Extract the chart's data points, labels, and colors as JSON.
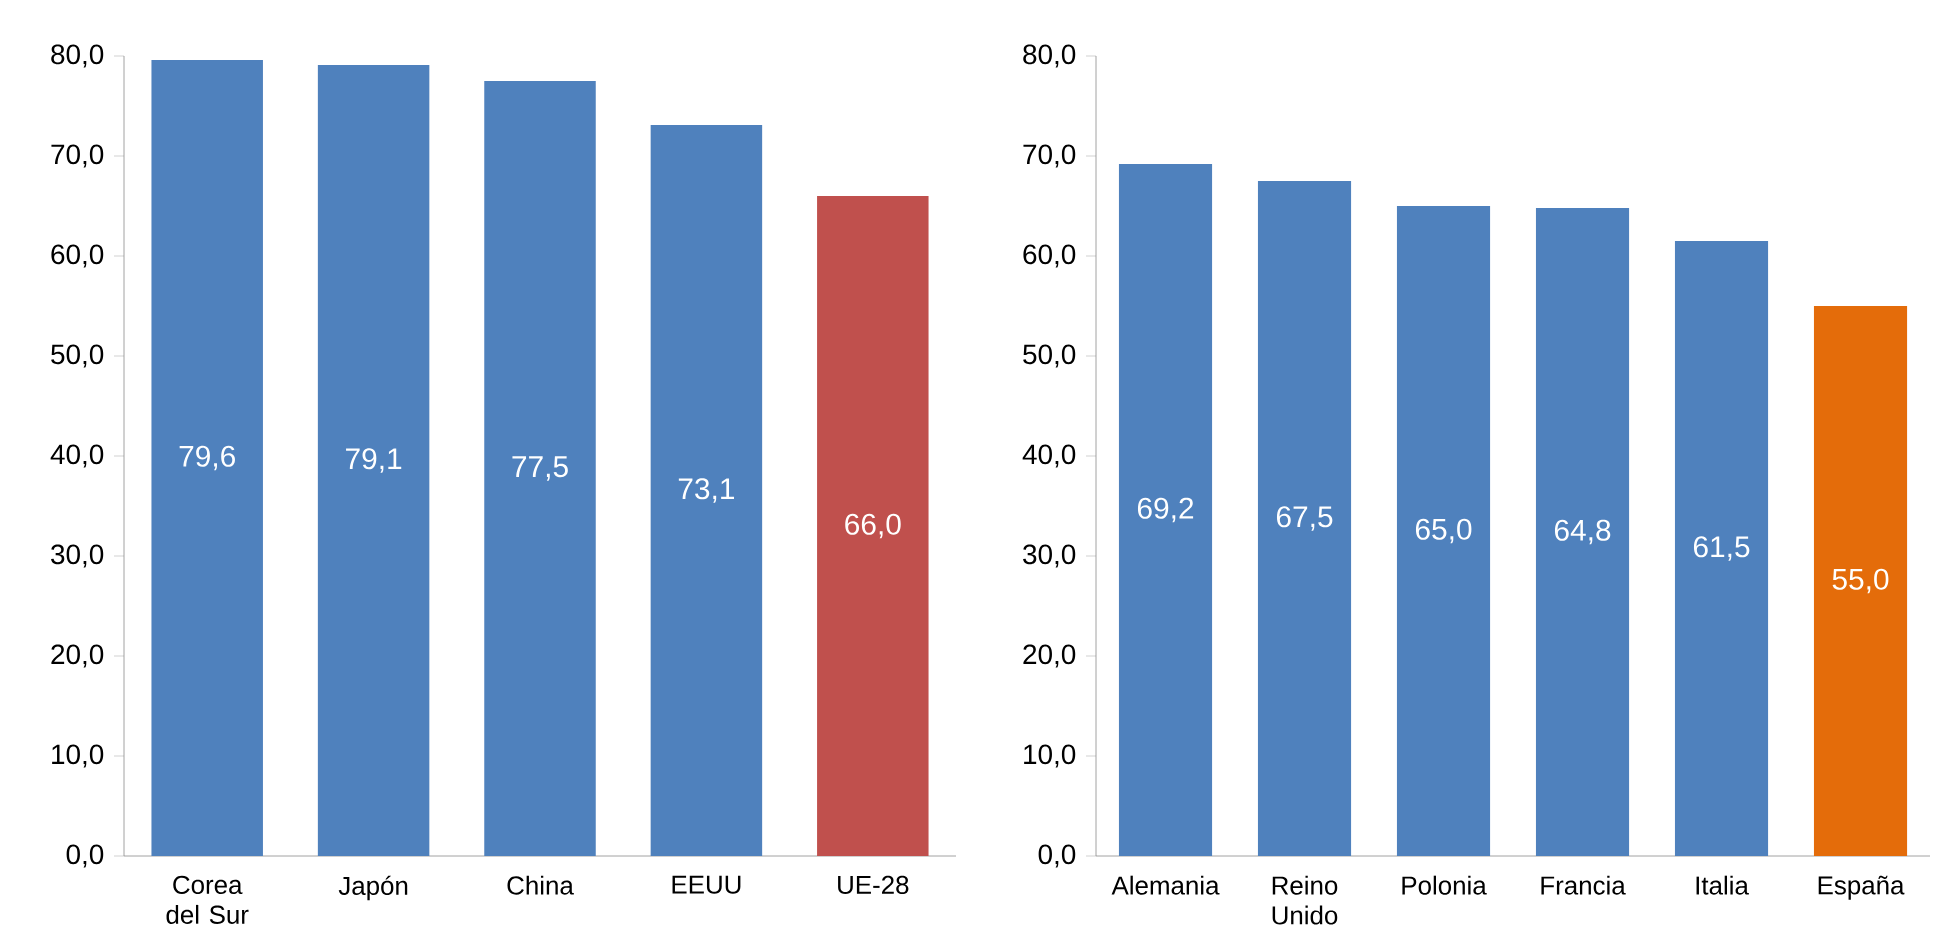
{
  "chart_data": [
    {
      "type": "bar",
      "categories": [
        "Corea del Sur",
        "Japón",
        "China",
        "EEUU",
        "UE-28"
      ],
      "values": [
        79.6,
        79.1,
        77.5,
        73.1,
        66.0
      ],
      "colors": [
        "#4f81bd",
        "#4f81bd",
        "#4f81bd",
        "#4f81bd",
        "#c0504d"
      ],
      "value_labels": [
        "79,6",
        "79,1",
        "77,5",
        "73,1",
        "66,0"
      ],
      "ylim": [
        0,
        80
      ],
      "yticks": [
        {
          "value": 0,
          "label": "0,0"
        },
        {
          "value": 10,
          "label": "10,0"
        },
        {
          "value": 20,
          "label": "20,0"
        },
        {
          "value": 30,
          "label": "30,0"
        },
        {
          "value": 40,
          "label": "40,0"
        },
        {
          "value": 50,
          "label": "50,0"
        },
        {
          "value": 60,
          "label": "60,0"
        },
        {
          "value": 70,
          "label": "70,0"
        },
        {
          "value": 80,
          "label": "80,0"
        }
      ]
    },
    {
      "type": "bar",
      "categories": [
        "Alemania",
        "Reino Unido",
        "Polonia",
        "Francia",
        "Italia",
        "España"
      ],
      "values": [
        69.2,
        67.5,
        65.0,
        64.8,
        61.5,
        55.0
      ],
      "colors": [
        "#4f81bd",
        "#4f81bd",
        "#4f81bd",
        "#4f81bd",
        "#4f81bd",
        "#e46c0a"
      ],
      "value_labels": [
        "69,2",
        "67,5",
        "65,0",
        "64,8",
        "61,5",
        "55,0"
      ],
      "ylim": [
        0,
        80
      ],
      "yticks": [
        {
          "value": 0,
          "label": "0,0"
        },
        {
          "value": 10,
          "label": "10,0"
        },
        {
          "value": 20,
          "label": "20,0"
        },
        {
          "value": 30,
          "label": "30,0"
        },
        {
          "value": 40,
          "label": "40,0"
        },
        {
          "value": 50,
          "label": "50,0"
        },
        {
          "value": 60,
          "label": "60,0"
        },
        {
          "value": 70,
          "label": "70,0"
        },
        {
          "value": 80,
          "label": "80,0"
        }
      ]
    }
  ]
}
